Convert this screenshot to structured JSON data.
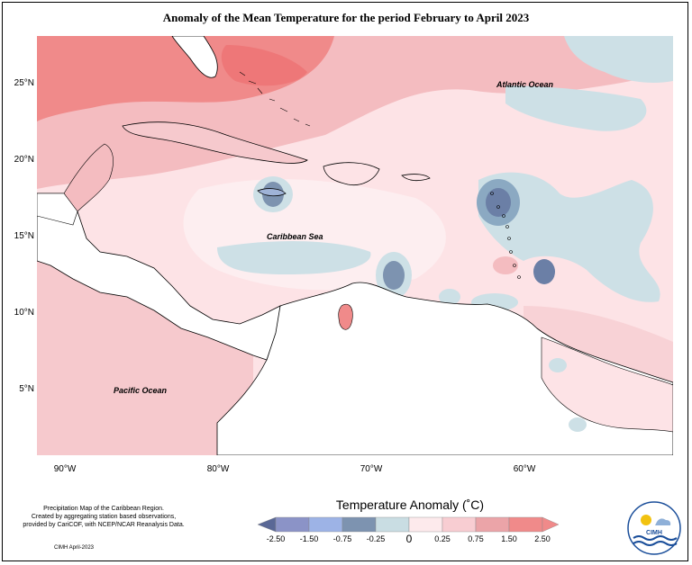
{
  "title": "Anomaly of the Mean Temperature for the period February to April 2023",
  "map": {
    "lat_ticks": [
      "25°N",
      "20°N",
      "15°N",
      "10°N",
      "5°N"
    ],
    "lon_ticks": [
      "90°W",
      "80°W",
      "70°W",
      "60°W"
    ],
    "labels": {
      "atlantic": "Atlantic Ocean",
      "caribbean": "Caribbean Sea",
      "pacific": "Pacific Ocean"
    },
    "colors": {
      "land_bg": "#ffffff",
      "warm_light": "#fde3e6",
      "warm_mid": "#f4bcc0",
      "warm_strong": "#f08585",
      "cool_light": "#cde0e6",
      "cool_mid": "#8ba9c2",
      "cool_strong": "#6b7fa6"
    }
  },
  "legend": {
    "title": "Temperature Anomaly (˚C)",
    "ticks": [
      "-2.50",
      "-1.50",
      "-0.75",
      "-0.25",
      "0",
      "0.25",
      "0.75",
      "1.50",
      "2.50"
    ],
    "colors": [
      "#5a6896",
      "#8b93c7",
      "#9db3e6",
      "#7d93b0",
      "#c9dde3",
      "#fdeaec",
      "#f8cdd2",
      "#eba4a8",
      "#f08a8a"
    ]
  },
  "credits": {
    "line1": "Precipitation Map of the Caribbean Region.",
    "line2": "Created by aggregating station based observations,",
    "line3": "provided by CariCOF, with NCEP/NCAR Reanalysis Data.",
    "date": "CIMH April-2023"
  },
  "logo": {
    "text": "CIMH",
    "icon": "cimh-logo-icon"
  }
}
